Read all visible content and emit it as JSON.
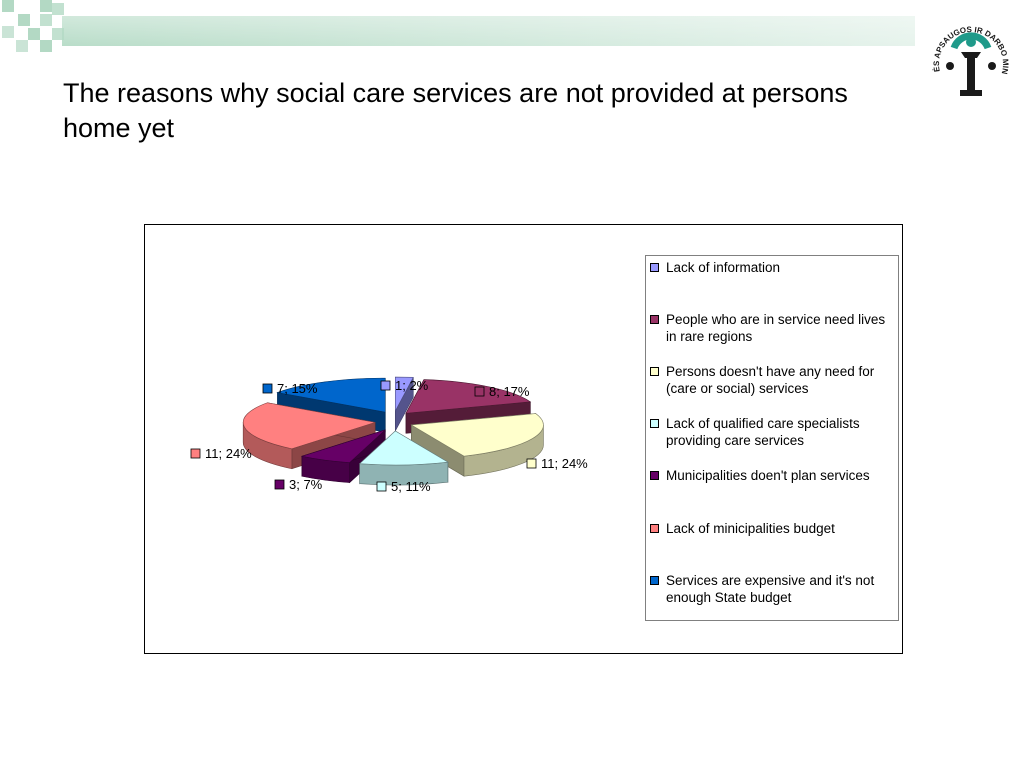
{
  "slide": {
    "title": "The reasons why social care services are not provided at persons home yet"
  },
  "logo": {
    "arc_text": "SOCIALINĖS APSAUGOS IR DARBO MINISTERIJA",
    "colors": {
      "teal": "#1f9a8a",
      "dark": "#1a1a1a"
    }
  },
  "theme": {
    "banner_gradient": [
      "#b9ddc9",
      "#e6f3ec"
    ],
    "banner_squares": "#b3d9c4"
  },
  "chart_data": {
    "type": "pie",
    "style": "3d-exploded",
    "title": "",
    "legend_position": "right",
    "slices": [
      {
        "label": "Lack of information",
        "value": 1,
        "percent": 2,
        "data_label": "1; 2%",
        "color": "#9999ff"
      },
      {
        "label": "People who are in service need lives in rare regions",
        "value": 8,
        "percent": 17,
        "data_label": "8; 17%",
        "color": "#993366"
      },
      {
        "label": "Persons doesn't have any need for (care or social) services",
        "value": 11,
        "percent": 24,
        "data_label": "11; 24%",
        "color": "#ffffcc"
      },
      {
        "label": "Lack of qualified care specialists providing care services",
        "value": 5,
        "percent": 11,
        "data_label": "5; 11%",
        "color": "#ccffff"
      },
      {
        "label": "Municipalities doen't plan services",
        "value": 3,
        "percent": 7,
        "data_label": "3; 7%",
        "color": "#660066"
      },
      {
        "label": "Lack of minicipalities budget",
        "value": 11,
        "percent": 24,
        "data_label": "11; 24%",
        "color": "#ff8080"
      },
      {
        "label": "Services are expensive and it's not enough State budget",
        "value": 7,
        "percent": 15,
        "data_label": "7; 15%",
        "color": "#0066cc"
      }
    ]
  }
}
